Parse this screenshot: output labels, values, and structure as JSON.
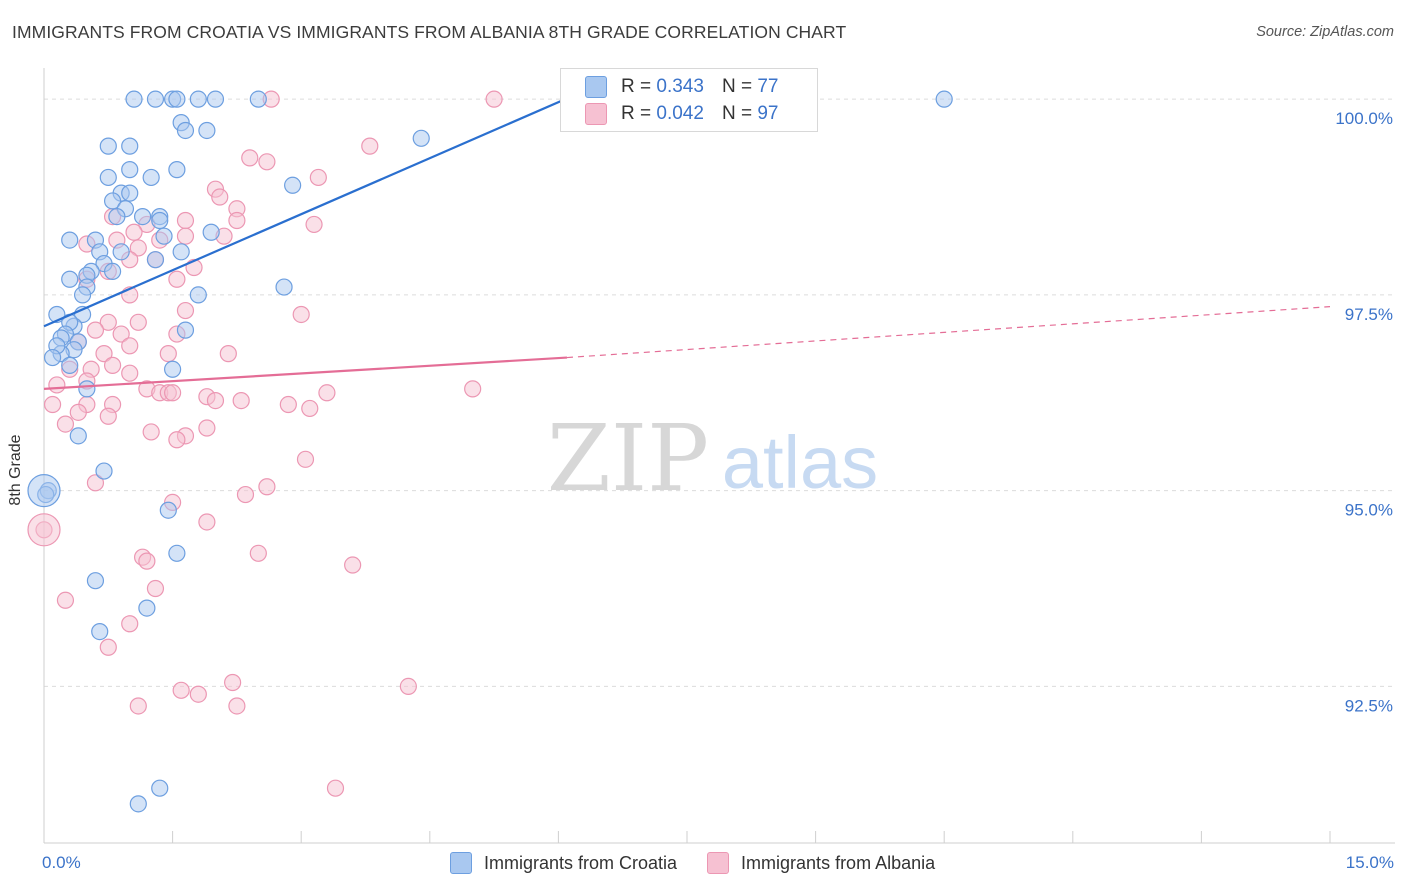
{
  "header": {
    "title": "IMMIGRANTS FROM CROATIA VS IMMIGRANTS FROM ALBANIA 8TH GRADE CORRELATION CHART",
    "source": "Source: ZipAtlas.com"
  },
  "watermark": {
    "zip": "ZIP",
    "atlas": "atlas"
  },
  "legend": {
    "croatia": {
      "r_label": "R =",
      "r_value": "0.343",
      "n_label": "N =",
      "n_value": "77"
    },
    "albania": {
      "r_label": "R =",
      "r_value": "0.042",
      "n_label": "N =",
      "n_value": "97"
    }
  },
  "bottom_legend": {
    "croatia": "Immigrants from Croatia",
    "albania": "Immigrants from Albania"
  },
  "colors": {
    "croatia_fill": "#a9c8f0",
    "croatia_stroke": "#6d9fe0",
    "croatia_line": "#2a6fcf",
    "albania_fill": "#f6c1d2",
    "albania_stroke": "#ec97b3",
    "albania_line": "#e46d96",
    "tick_text": "#3b73c9",
    "grid": "#dcdcdc"
  },
  "chart_data": {
    "type": "scatter",
    "ylabel": "8th Grade",
    "xlim": [
      0,
      15
    ],
    "ylim": [
      90.5,
      100.5
    ],
    "x_tick_labels": [
      "0.0%",
      "15.0%"
    ],
    "y_ticks": [
      {
        "value": 100.0,
        "label": "100.0%"
      },
      {
        "value": 97.5,
        "label": "97.5%"
      },
      {
        "value": 95.0,
        "label": "95.0%"
      },
      {
        "value": 92.5,
        "label": "92.5%"
      }
    ],
    "series": [
      {
        "name": "Immigrants from Croatia",
        "trend": {
          "x0": 0.0,
          "y0": 97.1,
          "x1": 6.5,
          "y1": 100.2,
          "dash_to": 6.5
        },
        "points": [
          [
            1.05,
            100.0
          ],
          [
            1.3,
            100.0
          ],
          [
            1.5,
            100.0
          ],
          [
            1.55,
            100.0
          ],
          [
            1.8,
            100.0
          ],
          [
            2.0,
            100.0
          ],
          [
            2.5,
            100.0
          ],
          [
            6.4,
            100.0
          ],
          [
            10.5,
            100.0
          ],
          [
            1.6,
            99.7
          ],
          [
            1.65,
            99.6
          ],
          [
            1.9,
            99.6
          ],
          [
            0.75,
            99.4
          ],
          [
            1.0,
            99.4
          ],
          [
            4.4,
            99.5
          ],
          [
            1.55,
            99.1
          ],
          [
            1.0,
            99.1
          ],
          [
            1.25,
            99.0
          ],
          [
            0.75,
            99.0
          ],
          [
            2.9,
            98.9
          ],
          [
            0.9,
            98.8
          ],
          [
            1.0,
            98.8
          ],
          [
            0.8,
            98.7
          ],
          [
            0.95,
            98.6
          ],
          [
            1.35,
            98.5
          ],
          [
            0.85,
            98.5
          ],
          [
            1.15,
            98.5
          ],
          [
            1.35,
            98.45
          ],
          [
            0.3,
            98.2
          ],
          [
            0.6,
            98.2
          ],
          [
            1.4,
            98.25
          ],
          [
            1.95,
            98.3
          ],
          [
            0.65,
            98.05
          ],
          [
            0.9,
            98.05
          ],
          [
            1.6,
            98.05
          ],
          [
            1.3,
            97.95
          ],
          [
            0.7,
            97.9
          ],
          [
            0.55,
            97.8
          ],
          [
            0.5,
            97.75
          ],
          [
            0.3,
            97.7
          ],
          [
            0.8,
            97.8
          ],
          [
            0.5,
            97.6
          ],
          [
            1.8,
            97.5
          ],
          [
            2.8,
            97.6
          ],
          [
            0.45,
            97.5
          ],
          [
            0.15,
            97.25
          ],
          [
            0.45,
            97.25
          ],
          [
            0.35,
            97.1
          ],
          [
            0.3,
            97.15
          ],
          [
            1.65,
            97.05
          ],
          [
            0.25,
            97.0
          ],
          [
            0.2,
            96.95
          ],
          [
            0.4,
            96.9
          ],
          [
            0.35,
            96.8
          ],
          [
            0.2,
            96.75
          ],
          [
            0.15,
            96.85
          ],
          [
            0.1,
            96.7
          ],
          [
            0.3,
            96.6
          ],
          [
            1.5,
            96.55
          ],
          [
            0.5,
            96.3
          ],
          [
            0.4,
            95.7
          ],
          [
            0.7,
            95.25
          ],
          [
            0.05,
            95.0
          ],
          [
            0.02,
            94.95
          ],
          [
            1.45,
            94.75
          ],
          [
            1.55,
            94.2
          ],
          [
            0.6,
            93.85
          ],
          [
            1.2,
            93.5
          ],
          [
            0.65,
            93.2
          ],
          [
            1.35,
            91.2
          ],
          [
            1.1,
            91.0
          ]
        ]
      },
      {
        "name": "Immigrants from Albania",
        "trend": {
          "x0": 0.0,
          "y0": 96.3,
          "x1": 6.1,
          "y1": 96.7,
          "x_end": 15.0,
          "y_end": 97.35
        },
        "points": [
          [
            2.65,
            100.0
          ],
          [
            5.25,
            100.0
          ],
          [
            3.8,
            99.4
          ],
          [
            2.4,
            99.25
          ],
          [
            2.6,
            99.2
          ],
          [
            3.2,
            99.0
          ],
          [
            2.0,
            98.85
          ],
          [
            2.05,
            98.75
          ],
          [
            2.25,
            98.6
          ],
          [
            2.25,
            98.45
          ],
          [
            3.15,
            98.4
          ],
          [
            1.65,
            98.45
          ],
          [
            1.2,
            98.4
          ],
          [
            0.8,
            98.5
          ],
          [
            1.05,
            98.3
          ],
          [
            2.1,
            98.25
          ],
          [
            1.65,
            98.25
          ],
          [
            0.85,
            98.2
          ],
          [
            0.5,
            98.15
          ],
          [
            1.1,
            98.1
          ],
          [
            1.35,
            98.2
          ],
          [
            1.0,
            97.95
          ],
          [
            1.3,
            97.95
          ],
          [
            1.75,
            97.85
          ],
          [
            0.75,
            97.8
          ],
          [
            0.5,
            97.7
          ],
          [
            1.55,
            97.7
          ],
          [
            1.0,
            97.5
          ],
          [
            1.65,
            97.3
          ],
          [
            3.0,
            97.25
          ],
          [
            0.75,
            97.15
          ],
          [
            1.1,
            97.15
          ],
          [
            0.6,
            97.05
          ],
          [
            0.9,
            97.0
          ],
          [
            1.55,
            97.0
          ],
          [
            1.0,
            96.85
          ],
          [
            0.4,
            96.9
          ],
          [
            0.7,
            96.75
          ],
          [
            1.45,
            96.75
          ],
          [
            2.15,
            96.75
          ],
          [
            0.8,
            96.6
          ],
          [
            0.55,
            96.55
          ],
          [
            0.3,
            96.55
          ],
          [
            1.0,
            96.5
          ],
          [
            0.5,
            96.4
          ],
          [
            0.15,
            96.35
          ],
          [
            1.2,
            96.3
          ],
          [
            1.35,
            96.25
          ],
          [
            1.45,
            96.25
          ],
          [
            1.5,
            96.25
          ],
          [
            5.0,
            96.3
          ],
          [
            3.3,
            96.25
          ],
          [
            1.9,
            96.2
          ],
          [
            2.0,
            96.15
          ],
          [
            2.3,
            96.15
          ],
          [
            2.85,
            96.1
          ],
          [
            3.1,
            96.05
          ],
          [
            0.5,
            96.1
          ],
          [
            0.8,
            96.1
          ],
          [
            0.1,
            96.1
          ],
          [
            0.4,
            96.0
          ],
          [
            0.75,
            95.95
          ],
          [
            0.25,
            95.85
          ],
          [
            1.9,
            95.8
          ],
          [
            1.25,
            95.75
          ],
          [
            1.65,
            95.7
          ],
          [
            1.55,
            95.65
          ],
          [
            3.05,
            95.4
          ],
          [
            0.6,
            95.1
          ],
          [
            2.6,
            95.05
          ],
          [
            2.35,
            94.95
          ],
          [
            1.5,
            94.85
          ],
          [
            0.0,
            94.5
          ],
          [
            1.9,
            94.6
          ],
          [
            2.5,
            94.2
          ],
          [
            1.15,
            94.15
          ],
          [
            1.2,
            94.1
          ],
          [
            3.6,
            94.05
          ],
          [
            1.3,
            93.75
          ],
          [
            0.25,
            93.6
          ],
          [
            1.0,
            93.3
          ],
          [
            0.75,
            93.0
          ],
          [
            2.2,
            92.55
          ],
          [
            1.6,
            92.45
          ],
          [
            4.25,
            92.5
          ],
          [
            1.8,
            92.4
          ],
          [
            2.25,
            92.25
          ],
          [
            1.1,
            92.25
          ],
          [
            3.4,
            91.2
          ]
        ]
      }
    ]
  }
}
